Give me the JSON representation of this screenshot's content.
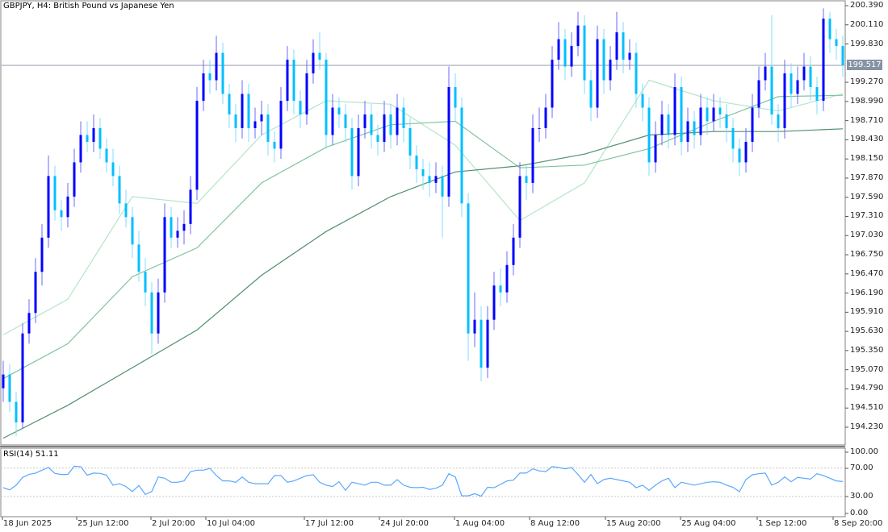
{
  "header": {
    "title": "GBPJPY, H4:  British Pound vs Japanese Yen"
  },
  "current_price": {
    "label": "199.517",
    "value": 199.517
  },
  "colors": {
    "bull_body": "#0000ff",
    "bull_wick": "#6a6aff",
    "bear_body": "#00bfff",
    "bear_wick": "#7fdcff",
    "ma_fast": "#b4e6c8",
    "ma_mid": "#7fc49c",
    "ma_slow": "#4f8f6c",
    "rsi_line": "#5aa8ff",
    "price_line": "#b9bec6"
  },
  "chart_data": [
    {
      "type": "candlestick",
      "title": "GBPJPY, H4:  British Pound vs Japanese Yen",
      "ylim": [
        194.05,
        200.46
      ],
      "y_ticks": [
        "200.390",
        "200.110",
        "199.830",
        "199.270",
        "198.990",
        "198.710",
        "198.430",
        "198.150",
        "197.870",
        "197.590",
        "197.310",
        "197.030",
        "196.750",
        "196.470",
        "196.190",
        "195.910",
        "195.630",
        "195.350",
        "195.070",
        "194.790",
        "194.510",
        "194.230"
      ],
      "x_ticks": [
        "18 Jun 2025",
        "25 Jun 12:00",
        "2 Jul 20:00",
        "10 Jul 04:00",
        "17 Jul 12:00",
        "24 Jul 20:00",
        "1 Aug 04:00",
        "8 Aug 12:00",
        "15 Aug 20:00",
        "25 Aug 04:00",
        "1 Sep 12:00",
        "8 Sep 20:00"
      ],
      "grid": false,
      "ohlc": [
        [
          194.8,
          195.2,
          194.6,
          195.0
        ],
        [
          195.0,
          195.15,
          194.45,
          194.6
        ],
        [
          194.6,
          194.75,
          194.1,
          194.3
        ],
        [
          194.3,
          195.75,
          194.2,
          195.6
        ],
        [
          195.6,
          196.1,
          195.45,
          195.9
        ],
        [
          195.9,
          196.7,
          195.75,
          196.5
        ],
        [
          196.5,
          197.2,
          196.3,
          197.0
        ],
        [
          197.0,
          198.2,
          196.85,
          197.9
        ],
        [
          197.9,
          198.05,
          197.25,
          197.4
        ],
        [
          197.4,
          197.55,
          197.1,
          197.3
        ],
        [
          197.3,
          197.8,
          197.15,
          197.6
        ],
        [
          197.6,
          198.3,
          197.45,
          198.1
        ],
        [
          198.1,
          198.7,
          197.95,
          198.5
        ],
        [
          198.5,
          198.7,
          198.25,
          198.4
        ],
        [
          198.4,
          198.8,
          198.25,
          198.6
        ],
        [
          198.6,
          198.75,
          198.15,
          198.3
        ],
        [
          198.3,
          198.45,
          197.95,
          198.1
        ],
        [
          198.1,
          198.3,
          197.75,
          197.9
        ],
        [
          197.9,
          198.05,
          197.35,
          197.5
        ],
        [
          197.5,
          197.7,
          197.15,
          197.3
        ],
        [
          197.3,
          197.45,
          196.7,
          196.9
        ],
        [
          196.9,
          197.1,
          196.35,
          196.5
        ],
        [
          196.5,
          196.7,
          196.0,
          196.2
        ],
        [
          196.2,
          196.35,
          195.3,
          195.6
        ],
        [
          195.6,
          196.4,
          195.45,
          196.2
        ],
        [
          196.2,
          197.5,
          196.05,
          197.3
        ],
        [
          197.3,
          197.45,
          196.85,
          197.0
        ],
        [
          197.0,
          197.3,
          196.85,
          197.1
        ],
        [
          197.1,
          197.4,
          196.9,
          197.2
        ],
        [
          197.2,
          197.9,
          197.05,
          197.7
        ],
        [
          197.7,
          199.2,
          197.55,
          199.0
        ],
        [
          199.0,
          199.6,
          198.85,
          199.4
        ],
        [
          199.4,
          199.6,
          199.1,
          199.3
        ],
        [
          199.3,
          199.95,
          199.15,
          199.7
        ],
        [
          199.7,
          199.85,
          198.95,
          199.1
        ],
        [
          199.1,
          199.25,
          198.6,
          198.8
        ],
        [
          198.8,
          198.95,
          198.4,
          198.6
        ],
        [
          198.6,
          199.3,
          198.45,
          199.1
        ],
        [
          199.1,
          199.25,
          198.4,
          198.6
        ],
        [
          198.6,
          198.9,
          198.45,
          198.7
        ],
        [
          198.7,
          199.0,
          198.5,
          198.8
        ],
        [
          198.8,
          198.95,
          198.2,
          198.4
        ],
        [
          198.4,
          198.55,
          198.1,
          198.3
        ],
        [
          198.3,
          199.2,
          198.15,
          199.0
        ],
        [
          199.0,
          199.8,
          198.85,
          199.6
        ],
        [
          199.6,
          199.75,
          198.8,
          199.0
        ],
        [
          199.0,
          199.15,
          198.6,
          198.8
        ],
        [
          198.8,
          199.6,
          198.65,
          199.4
        ],
        [
          199.4,
          199.9,
          199.25,
          199.7
        ],
        [
          199.7,
          200.0,
          199.45,
          199.6
        ],
        [
          199.6,
          199.7,
          198.3,
          198.5
        ],
        [
          198.5,
          199.1,
          198.35,
          198.9
        ],
        [
          198.9,
          199.05,
          198.6,
          198.8
        ],
        [
          198.8,
          198.95,
          198.4,
          198.6
        ],
        [
          198.6,
          198.75,
          197.7,
          197.9
        ],
        [
          197.9,
          198.8,
          197.75,
          198.6
        ],
        [
          198.6,
          199.0,
          198.45,
          198.8
        ],
        [
          198.8,
          198.95,
          198.3,
          198.5
        ],
        [
          198.5,
          198.65,
          198.2,
          198.4
        ],
        [
          198.4,
          199.0,
          198.25,
          198.8
        ],
        [
          198.8,
          198.95,
          198.3,
          198.5
        ],
        [
          198.5,
          199.1,
          198.35,
          198.9
        ],
        [
          198.9,
          199.05,
          198.4,
          198.6
        ],
        [
          198.6,
          198.75,
          198.0,
          198.2
        ],
        [
          198.2,
          198.35,
          197.8,
          198.0
        ],
        [
          198.0,
          198.15,
          197.7,
          197.9
        ],
        [
          197.9,
          198.1,
          197.6,
          197.8
        ],
        [
          197.8,
          198.1,
          197.65,
          197.9
        ],
        [
          197.9,
          198.05,
          197.0,
          197.6
        ],
        [
          197.6,
          199.5,
          197.45,
          199.2
        ],
        [
          199.2,
          199.4,
          198.7,
          198.9
        ],
        [
          198.9,
          199.05,
          197.3,
          197.5
        ],
        [
          197.5,
          197.65,
          195.2,
          195.6
        ],
        [
          195.6,
          196.2,
          195.4,
          195.8
        ],
        [
          195.8,
          196.0,
          194.9,
          195.1
        ],
        [
          195.1,
          196.0,
          194.95,
          195.8
        ],
        [
          195.8,
          196.5,
          195.65,
          196.3
        ],
        [
          196.3,
          196.55,
          196.0,
          196.2
        ],
        [
          196.2,
          196.8,
          196.05,
          196.6
        ],
        [
          196.6,
          197.2,
          196.45,
          197.0
        ],
        [
          197.0,
          198.1,
          196.85,
          197.9
        ],
        [
          197.9,
          198.05,
          197.55,
          197.8
        ],
        [
          197.8,
          198.8,
          197.65,
          198.6
        ],
        [
          198.6,
          198.9,
          198.4,
          198.6
        ],
        [
          198.6,
          199.1,
          198.45,
          198.9
        ],
        [
          198.9,
          199.8,
          198.75,
          199.6
        ],
        [
          199.6,
          200.15,
          199.45,
          199.9
        ],
        [
          199.9,
          200.05,
          199.3,
          199.5
        ],
        [
          199.5,
          200.0,
          199.35,
          199.8
        ],
        [
          199.8,
          200.3,
          199.65,
          200.1
        ],
        [
          200.1,
          200.25,
          199.1,
          199.3
        ],
        [
          199.3,
          199.45,
          198.7,
          198.9
        ],
        [
          198.9,
          200.1,
          198.75,
          199.9
        ],
        [
          199.9,
          200.05,
          199.1,
          199.3
        ],
        [
          199.3,
          199.8,
          199.15,
          199.6
        ],
        [
          199.6,
          200.3,
          199.45,
          200.0
        ],
        [
          200.0,
          200.15,
          199.4,
          199.6
        ],
        [
          199.6,
          199.9,
          199.45,
          199.7
        ],
        [
          199.7,
          199.85,
          198.9,
          199.1
        ],
        [
          199.1,
          199.25,
          198.7,
          198.9
        ],
        [
          198.9,
          199.05,
          197.9,
          198.1
        ],
        [
          198.1,
          198.7,
          197.95,
          198.5
        ],
        [
          198.5,
          199.0,
          198.35,
          198.8
        ],
        [
          198.8,
          198.95,
          198.3,
          198.5
        ],
        [
          198.5,
          199.4,
          198.35,
          199.2
        ],
        [
          199.2,
          199.35,
          198.2,
          198.4
        ],
        [
          198.4,
          198.9,
          198.25,
          198.7
        ],
        [
          198.7,
          198.85,
          198.3,
          198.5
        ],
        [
          198.5,
          199.1,
          198.35,
          198.9
        ],
        [
          198.9,
          199.05,
          198.5,
          198.7
        ],
        [
          198.7,
          199.1,
          198.55,
          198.9
        ],
        [
          198.9,
          199.05,
          198.6,
          198.8
        ],
        [
          198.8,
          198.95,
          198.4,
          198.6
        ],
        [
          198.6,
          198.75,
          198.1,
          198.3
        ],
        [
          198.3,
          198.45,
          197.9,
          198.1
        ],
        [
          198.1,
          198.6,
          197.95,
          198.4
        ],
        [
          198.4,
          199.1,
          198.25,
          198.9
        ],
        [
          198.9,
          199.5,
          198.75,
          199.3
        ],
        [
          199.3,
          199.7,
          199.15,
          199.5
        ],
        [
          199.5,
          200.25,
          198.65,
          198.8
        ],
        [
          198.8,
          198.95,
          198.4,
          198.6
        ],
        [
          198.6,
          199.6,
          198.45,
          199.4
        ],
        [
          199.4,
          199.55,
          198.9,
          199.1
        ],
        [
          199.1,
          199.5,
          198.95,
          199.3
        ],
        [
          199.3,
          199.7,
          199.15,
          199.5
        ],
        [
          199.5,
          199.65,
          199.0,
          199.2
        ],
        [
          199.2,
          199.35,
          198.8,
          199.0
        ],
        [
          199.0,
          200.35,
          198.85,
          200.2
        ],
        [
          200.2,
          200.3,
          199.7,
          199.9
        ],
        [
          199.9,
          200.05,
          199.6,
          199.8
        ],
        [
          199.8,
          199.95,
          199.35,
          199.52
        ]
      ],
      "moving_averages": [
        {
          "key": "ma_fast",
          "values": [
            195.58,
            196.1,
            197.6,
            197.5,
            198.5,
            199.0,
            198.95,
            198.35,
            197.25,
            197.8,
            199.3,
            199.0,
            198.85,
            199.1
          ]
        },
        {
          "key": "ma_mid",
          "values": [
            194.94,
            195.45,
            196.43,
            196.85,
            197.8,
            198.32,
            198.65,
            198.7,
            198.02,
            198.06,
            198.3,
            198.7,
            199.06,
            199.08
          ]
        },
        {
          "key": "ma_slow",
          "values": [
            194.07,
            194.55,
            195.1,
            195.65,
            196.45,
            197.09,
            197.6,
            197.96,
            198.05,
            198.22,
            198.5,
            198.55,
            198.55,
            198.59
          ]
        }
      ]
    },
    {
      "type": "line",
      "title": "RSI(14) 51.11",
      "ylim": [
        0,
        100
      ],
      "y_ticks": [
        "100.00",
        "70.00",
        "30.00",
        "0.00"
      ],
      "levels": [
        70,
        30
      ],
      "values": [
        42.5,
        39.4,
        46,
        56.8,
        61,
        63,
        67,
        70.8,
        62.5,
        61,
        61,
        72.6,
        72,
        60,
        63,
        62.5,
        60,
        46,
        48,
        44,
        37,
        45.5,
        33,
        37,
        57.5,
        55.7,
        50,
        50,
        52,
        65,
        67,
        67,
        69.6,
        59.4,
        52,
        52,
        50,
        57.5,
        50,
        48,
        48,
        48,
        59.4,
        59.4,
        50,
        52,
        55.7,
        59.4,
        60.6,
        50,
        46,
        44,
        50.7,
        38.7,
        50,
        48,
        46,
        50,
        50,
        46,
        46,
        53.8,
        46,
        43,
        42.5,
        43,
        40,
        41.7,
        46,
        62,
        57.5,
        31,
        31,
        34,
        30.4,
        43,
        42.5,
        47,
        52,
        53,
        63,
        63,
        69,
        66,
        65,
        72,
        70.8,
        69,
        70.8,
        61,
        50,
        61,
        48,
        53.8,
        55.7,
        53.8,
        52,
        50,
        42.5,
        46,
        38.7,
        46,
        52,
        55.7,
        42.5,
        50,
        48,
        46,
        48,
        50,
        50.7,
        50,
        46,
        43,
        36.8,
        53.8,
        60.6,
        62,
        63,
        46,
        50,
        57.5,
        50.7,
        56.8,
        55.7,
        54.5,
        62,
        59.4,
        55.7,
        52,
        51.11
      ]
    }
  ]
}
